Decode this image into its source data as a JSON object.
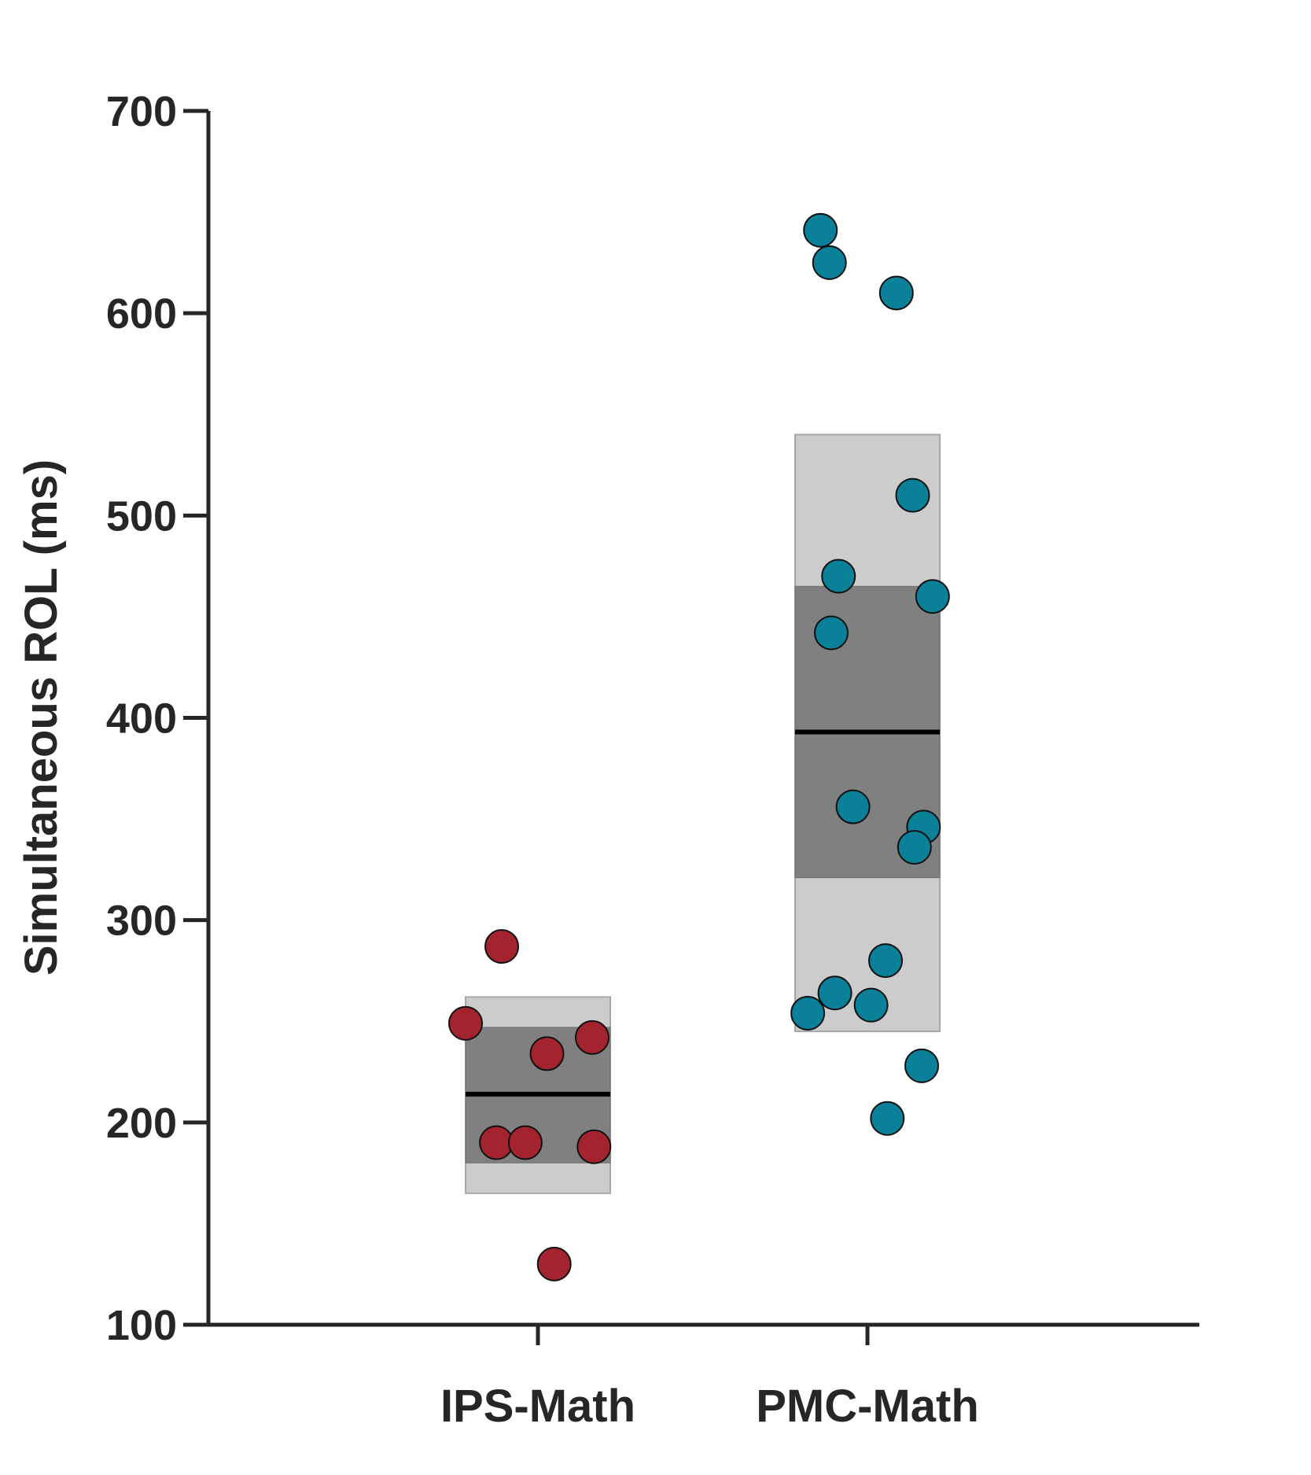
{
  "chart_data": {
    "type": "scatter",
    "title": "",
    "xlabel": "",
    "ylabel": "Simultaneous ROL (ms)",
    "ylim": [
      100,
      700
    ],
    "yticks": [
      100,
      200,
      300,
      400,
      500,
      600,
      700
    ],
    "grid": false,
    "legend": "none",
    "categories": [
      "IPS-Math",
      "PMC-Math"
    ],
    "series": [
      {
        "category": "IPS-Math",
        "color": "#a3242e",
        "mean": 214,
        "inner_band": [
          180,
          247
        ],
        "outer_band": [
          165,
          262
        ],
        "points": [
          {
            "jitter": -0.2,
            "y": 287
          },
          {
            "jitter": -0.4,
            "y": 249
          },
          {
            "jitter": 0.3,
            "y": 242
          },
          {
            "jitter": 0.05,
            "y": 234
          },
          {
            "jitter": -0.23,
            "y": 190
          },
          {
            "jitter": -0.07,
            "y": 190
          },
          {
            "jitter": 0.31,
            "y": 188
          },
          {
            "jitter": 0.09,
            "y": 130
          }
        ]
      },
      {
        "category": "PMC-Math",
        "color": "#0a8099",
        "mean": 393,
        "inner_band": [
          321,
          465
        ],
        "outer_band": [
          245,
          540
        ],
        "points": [
          {
            "jitter": -0.26,
            "y": 641
          },
          {
            "jitter": -0.21,
            "y": 625
          },
          {
            "jitter": 0.16,
            "y": 610
          },
          {
            "jitter": 0.25,
            "y": 510
          },
          {
            "jitter": -0.16,
            "y": 470
          },
          {
            "jitter": 0.36,
            "y": 460
          },
          {
            "jitter": -0.2,
            "y": 442
          },
          {
            "jitter": -0.08,
            "y": 356
          },
          {
            "jitter": 0.31,
            "y": 346
          },
          {
            "jitter": 0.26,
            "y": 336
          },
          {
            "jitter": 0.1,
            "y": 280
          },
          {
            "jitter": -0.18,
            "y": 264
          },
          {
            "jitter": 0.02,
            "y": 258
          },
          {
            "jitter": -0.33,
            "y": 254
          },
          {
            "jitter": 0.3,
            "y": 228
          },
          {
            "jitter": 0.11,
            "y": 202
          }
        ]
      }
    ]
  }
}
